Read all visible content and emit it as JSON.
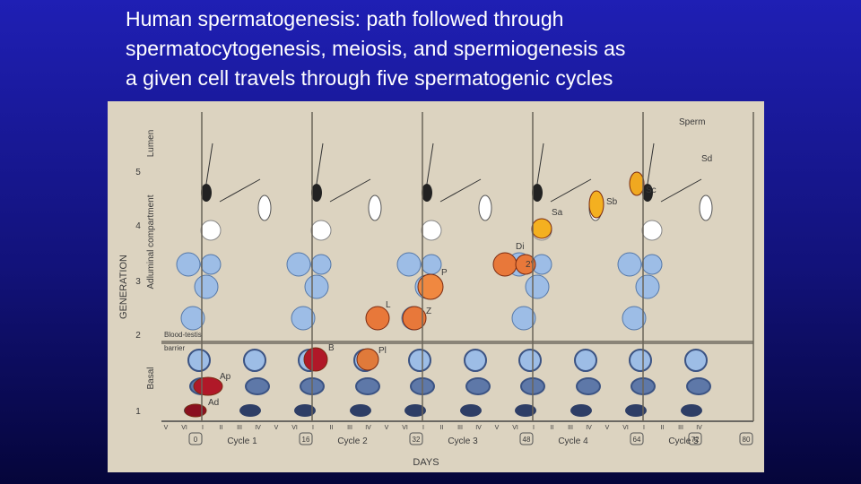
{
  "title_lines": [
    "Human spermatogenesis: path followed through",
    "spermatocytogenesis, meiosis,  and spermiogenesis as",
    "a given cell travels through five spermatogenic cycles"
  ],
  "figure": {
    "y_axis_label": "GENERATION",
    "generations": [
      "1",
      "2",
      "3",
      "4",
      "5"
    ],
    "regions": [
      "Lumen",
      "Adluminal compartment",
      "Basal"
    ],
    "barrier_label": [
      "Blood-testis",
      "barrier"
    ],
    "x_axis_label": "DAYS",
    "day_markers": [
      "0",
      "16",
      "32",
      "48",
      "64",
      "72",
      "80"
    ],
    "cycles": [
      "Cycle 1",
      "Cycle 2",
      "Cycle 3",
      "Cycle 4",
      "Cycle 5"
    ],
    "stages": [
      "V",
      "VI",
      "I",
      "II",
      "III",
      "IV"
    ],
    "cell_labels": {
      "ap": "Ap",
      "ad": "Ad",
      "b": "B",
      "pl": "Pl",
      "l": "L",
      "z": "Z",
      "p": "P",
      "di": "Di",
      "secondary": "2°",
      "sa": "Sa",
      "sb": "Sb",
      "sc": "Sc",
      "sd": "Sd",
      "sperm": "Sperm"
    }
  }
}
